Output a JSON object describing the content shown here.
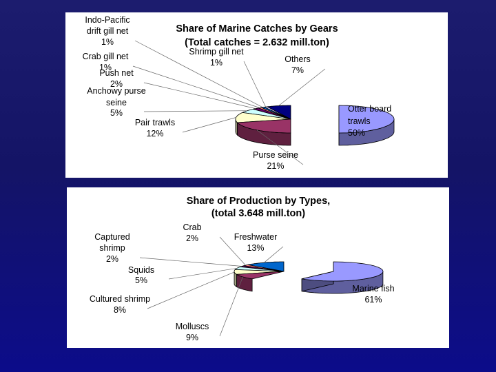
{
  "colors": {
    "background": "#14146e",
    "panel": "#ffffff"
  },
  "chart_data": [
    {
      "type": "pie",
      "title_lines": [
        "Share of Marine Catches by Gears",
        "(Total catches  = 2.632 mill.ton)"
      ],
      "slices": [
        {
          "label": "Otter board trawls",
          "label_lines": [
            "Otter board",
            "trawls"
          ],
          "value": 50,
          "pct_text": "50%",
          "color": "#9999ff"
        },
        {
          "label": "Purse seine",
          "label_lines": [
            "Purse seine"
          ],
          "value": 21,
          "pct_text": "21%",
          "color": "#993366"
        },
        {
          "label": "Pair trawls",
          "label_lines": [
            "Pair trawls"
          ],
          "value": 12,
          "pct_text": "12%",
          "color": "#ffffcc"
        },
        {
          "label": "Anchowy purse seine",
          "label_lines": [
            "Anchowy purse",
            "seine"
          ],
          "value": 5,
          "pct_text": "5%",
          "color": "#ccffff"
        },
        {
          "label": "Push net",
          "label_lines": [
            "Push net"
          ],
          "value": 2,
          "pct_text": "2%",
          "color": "#660066"
        },
        {
          "label": "Crab gill net",
          "label_lines": [
            "Crab gill net"
          ],
          "value": 1,
          "pct_text": "1%",
          "color": "#ff8080"
        },
        {
          "label": "Indo-Pacific drift gill net",
          "label_lines": [
            "Indo-Pacific",
            "drift gill net"
          ],
          "value": 1,
          "pct_text": "1%",
          "color": "#0066cc"
        },
        {
          "label": "Shrimp gill net",
          "label_lines": [
            "Shrimp gill net"
          ],
          "value": 1,
          "pct_text": "1%",
          "color": "#ccccff"
        },
        {
          "label": "Others",
          "label_lines": [
            "Others"
          ],
          "value": 7,
          "pct_text": "7%",
          "color": "#000080"
        }
      ]
    },
    {
      "type": "pie",
      "title_lines": [
        "Share of Production by Types,",
        "(total 3.648 mill.ton)"
      ],
      "slices": [
        {
          "label": "Marine fish",
          "label_lines": [
            "Marine fish"
          ],
          "value": 61,
          "pct_text": "61%",
          "color": "#9999ff"
        },
        {
          "label": "Molluscs",
          "label_lines": [
            "Molluscs"
          ],
          "value": 9,
          "pct_text": "9%",
          "color": "#993366"
        },
        {
          "label": "Cultured shrimp",
          "label_lines": [
            "Cultured shrimp"
          ],
          "value": 8,
          "pct_text": "8%",
          "color": "#ffffcc"
        },
        {
          "label": "Squids",
          "label_lines": [
            "Squids"
          ],
          "value": 5,
          "pct_text": "5%",
          "color": "#ccffff"
        },
        {
          "label": "Captured shrimp",
          "label_lines": [
            "Captured",
            "shrimp"
          ],
          "value": 2,
          "pct_text": "2%",
          "color": "#660066"
        },
        {
          "label": "Crab",
          "label_lines": [
            "Crab"
          ],
          "value": 2,
          "pct_text": "2%",
          "color": "#ff8080"
        },
        {
          "label": "Freshwater",
          "label_lines": [
            "Freshwater"
          ],
          "value": 13,
          "pct_text": "13%",
          "color": "#0066cc"
        }
      ]
    }
  ]
}
